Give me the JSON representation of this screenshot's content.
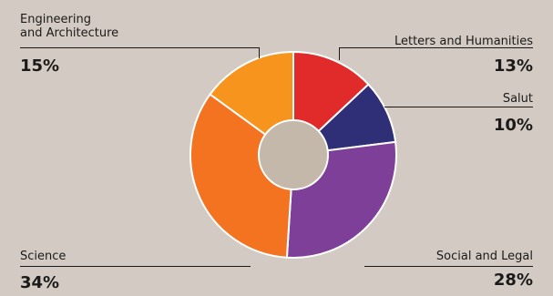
{
  "chart_data": {
    "type": "pie",
    "style": "donut",
    "categories": [
      "Letters and Humanities",
      "Salut",
      "Social and Legal",
      "Science",
      "Engineering and Architecture"
    ],
    "values": [
      13,
      10,
      28,
      34,
      15
    ],
    "value_labels": [
      "13%",
      "10%",
      "28%",
      "34%",
      "15%"
    ],
    "colors": [
      "#e12a2a",
      "#2e2f77",
      "#7e3f98",
      "#f37321",
      "#f7941d"
    ],
    "center_color": "#c4b8aa",
    "background": "#d3cbc3"
  },
  "labels": {
    "engineering_line1": "Engineering",
    "engineering_line2": "and Architecture",
    "engineering_pct": "15%",
    "letters": "Letters and Humanities",
    "letters_pct": "13%",
    "salut": "Salut",
    "salut_pct": "10%",
    "science": "Science",
    "science_pct": "34%",
    "social": "Social and Legal",
    "social_pct": "28%"
  }
}
